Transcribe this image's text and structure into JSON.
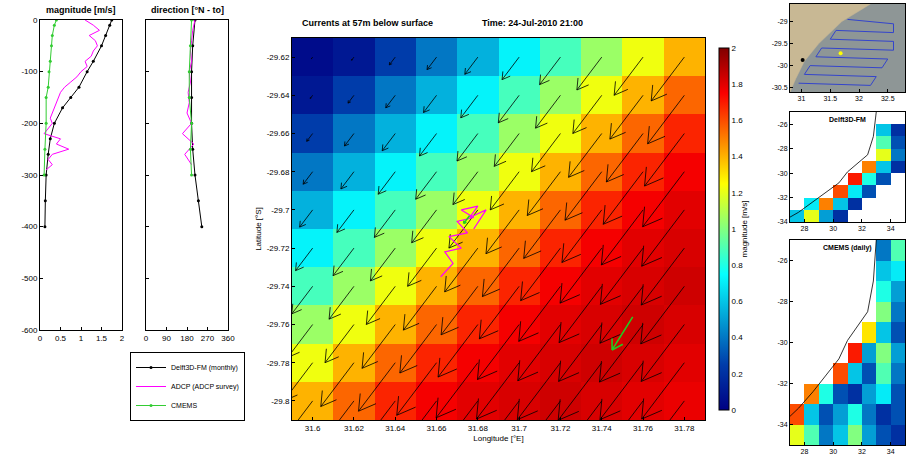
{
  "chart_data": [
    {
      "type": "line",
      "title": "magnitude [m/s]",
      "xlim": [
        0,
        2
      ],
      "xticks": [
        0,
        0.5,
        1,
        1.5,
        2
      ],
      "ylim": [
        -600,
        0
      ],
      "yticks": [
        -600,
        -500,
        -400,
        -300,
        -200,
        -100,
        0
      ],
      "grid": false,
      "series": [
        {
          "name": "Delft3D-FM (monthly)",
          "color": "#000000",
          "marker": "circle",
          "x": [
            1.75,
            1.7,
            1.6,
            1.5,
            1.3,
            1.15,
            0.95,
            0.75,
            0.55,
            0.35,
            0.25,
            0.2,
            0.15,
            0.13,
            0.12
          ],
          "y": [
            0,
            -10,
            -30,
            -50,
            -80,
            -100,
            -130,
            -150,
            -170,
            -200,
            -230,
            -260,
            -300,
            -350,
            -400
          ]
        },
        {
          "name": "ADCP (ADCP survey)",
          "color": "#ff00ff",
          "marker": "none",
          "x": [
            1.1,
            1.3,
            1.45,
            1.2,
            1.35,
            1.4,
            1.3,
            1.25,
            1.1,
            1.15,
            1.0,
            0.9,
            0.75,
            0.6,
            0.5,
            0.45,
            0.4,
            0.35,
            0.3,
            0.25,
            0.3,
            0.2,
            0.1,
            0.5,
            0.4,
            0.7,
            0.3,
            0.2,
            0.3,
            0.15
          ],
          "y": [
            0,
            -10,
            -20,
            -30,
            -40,
            -50,
            -60,
            -70,
            -80,
            -90,
            -100,
            -110,
            -120,
            -130,
            -140,
            -150,
            -160,
            -170,
            -180,
            -190,
            -200,
            -210,
            -220,
            -230,
            -240,
            -250,
            -260,
            -270,
            -280,
            -290
          ]
        },
        {
          "name": "CMEMS",
          "color": "#33cc33",
          "marker": "circle",
          "x": [
            0.4,
            0.35,
            0.3,
            0.28,
            0.25,
            0.22,
            0.2,
            0.15,
            0.15,
            0.12,
            0.1
          ],
          "y": [
            0,
            -10,
            -30,
            -50,
            -80,
            -100,
            -130,
            -150,
            -200,
            -250,
            -300
          ]
        }
      ]
    },
    {
      "type": "line",
      "title": "direction [°N - to]",
      "xlim": [
        0,
        360
      ],
      "xticks": [
        0,
        90,
        180,
        270,
        360
      ],
      "ylim": [
        -600,
        0
      ],
      "yticks": [
        -600,
        -500,
        -400,
        -300,
        -200,
        -100,
        0
      ],
      "grid": false,
      "tick_labels": "x",
      "legend": "bottom",
      "series": [
        {
          "name": "Delft3D-FM (monthly)",
          "color": "#000000",
          "marker": "circle",
          "x": [
            215,
            205,
            200,
            200,
            200,
            205,
            215,
            230,
            245
          ],
          "y": [
            0,
            -50,
            -100,
            -150,
            -200,
            -250,
            -300,
            -350,
            -400
          ]
        },
        {
          "name": "ADCP (ADCP survey)",
          "color": "#ff00ff",
          "marker": "none",
          "x": [
            215,
            205,
            200,
            195,
            200,
            190,
            195,
            185,
            190,
            180,
            200,
            160,
            210,
            170,
            200
          ],
          "y": [
            0,
            -20,
            -40,
            -60,
            -80,
            -100,
            -120,
            -140,
            -160,
            -180,
            -200,
            -220,
            -240,
            -260,
            -280
          ]
        },
        {
          "name": "CMEMS",
          "color": "#33cc33",
          "marker": "circle",
          "x": [
            200,
            195,
            190,
            190,
            200,
            195,
            200
          ],
          "y": [
            0,
            -50,
            -100,
            -150,
            -200,
            -250,
            -300
          ]
        }
      ]
    },
    {
      "type": "heatmap",
      "title": "Currents at 57m below surface",
      "subtitle": "Time: 24-Jul-2010 21:00",
      "x_label": "Longitude [°E]",
      "y_label": "Latitude [°S]",
      "x": [
        31.6,
        31.62,
        31.64,
        31.66,
        31.68,
        31.7,
        31.72,
        31.74,
        31.76,
        31.78
      ],
      "y": [
        -29.62,
        -29.64,
        -29.66,
        -29.68,
        -29.7,
        -29.72,
        -29.74,
        -29.76,
        -29.78,
        -29.8
      ],
      "z": [
        [
          0.05,
          0.1,
          0.25,
          0.4,
          0.55,
          0.72,
          0.88,
          1.05,
          1.22,
          1.4
        ],
        [
          0.1,
          0.25,
          0.4,
          0.55,
          0.72,
          0.88,
          1.05,
          1.22,
          1.4,
          1.55
        ],
        [
          0.25,
          0.4,
          0.55,
          0.72,
          0.88,
          1.05,
          1.22,
          1.4,
          1.55,
          1.68
        ],
        [
          0.4,
          0.55,
          0.72,
          0.88,
          1.05,
          1.22,
          1.4,
          1.55,
          1.68,
          1.76
        ],
        [
          0.55,
          0.72,
          0.88,
          1.05,
          1.22,
          1.4,
          1.55,
          1.68,
          1.76,
          1.8
        ],
        [
          0.72,
          0.88,
          1.05,
          1.22,
          1.4,
          1.55,
          1.68,
          1.76,
          1.8,
          1.82
        ],
        [
          0.88,
          1.05,
          1.22,
          1.4,
          1.55,
          1.68,
          1.76,
          1.8,
          1.82,
          1.84
        ],
        [
          1.05,
          1.22,
          1.4,
          1.55,
          1.68,
          1.76,
          1.8,
          1.82,
          1.84,
          1.82
        ],
        [
          1.22,
          1.4,
          1.55,
          1.68,
          1.76,
          1.8,
          1.82,
          1.84,
          1.82,
          1.8
        ],
        [
          1.4,
          1.55,
          1.68,
          1.76,
          1.8,
          1.82,
          1.84,
          1.82,
          1.8,
          1.78
        ]
      ],
      "xlim": [
        31.59,
        31.79
      ],
      "xticks": [
        31.6,
        31.62,
        31.64,
        31.66,
        31.68,
        31.7,
        31.72,
        31.74,
        31.76,
        31.78
      ],
      "ylim": [
        -29.81,
        -29.61
      ],
      "yticks": [
        -29.8,
        -29.78,
        -29.76,
        -29.74,
        -29.72,
        -29.7,
        -29.68,
        -29.66,
        -29.64,
        -29.62
      ],
      "zlim": [
        0,
        2
      ],
      "zticks": [
        0,
        0.2,
        0.4,
        0.6,
        0.8,
        1,
        1.2,
        1.4,
        1.6,
        1.8,
        2
      ],
      "z_label": "magnitude [m/s]",
      "grid": false,
      "arrows": {
        "direction": 215,
        "color": "#000000"
      },
      "adcp_track": {
        "color": "#ff00ff",
        "x": [
          31.662,
          31.668,
          31.664,
          31.672,
          31.666,
          31.675,
          31.67,
          31.678,
          31.672,
          31.68,
          31.676,
          31.684,
          31.678
        ],
        "y": [
          -29.735,
          -29.728,
          -29.722,
          -29.72,
          -29.714,
          -29.712,
          -29.706,
          -29.704,
          -29.7,
          -29.698,
          -29.704,
          -29.7,
          -29.71
        ]
      },
      "cmems_arrows": {
        "color": "#22cc22",
        "x": [
          31.676,
          31.755
        ],
        "y": [
          -29.703,
          -29.756
        ],
        "speed": [
          0.25,
          1.0
        ],
        "direction": [
          215,
          210
        ]
      }
    },
    {
      "type": "map",
      "xlim": [
        30.8,
        32.8
      ],
      "xticks": [
        31,
        31.5,
        32,
        32.5
      ],
      "ylim": [
        -30.6,
        -28.6
      ],
      "yticks": [
        -30.5,
        -30,
        -29.5,
        -29
      ],
      "grid": false,
      "land": {
        "color": "#c8b894",
        "x": [
          32.2,
          31.7,
          31.3,
          31.05,
          30.9,
          30.8,
          30.8
        ],
        "y": [
          -28.6,
          -29.0,
          -29.5,
          -29.9,
          -30.3,
          -30.6,
          -28.6
        ]
      },
      "track": {
        "color": "#3344cc",
        "x": [
          31.8,
          32.6,
          32.6,
          31.6,
          31.5,
          32.6,
          32.6,
          31.35,
          31.25,
          32.5,
          32.4,
          31.15,
          31.05,
          32.3,
          32.2,
          30.95
        ],
        "y": [
          -28.95,
          -29.05,
          -29.25,
          -29.2,
          -29.4,
          -29.45,
          -29.65,
          -29.6,
          -29.8,
          -29.85,
          -30.05,
          -30.0,
          -30.2,
          -30.25,
          -30.45,
          -30.4
        ]
      },
      "points": {
        "x": [
          31.68,
          31.02
        ],
        "y": [
          -29.72,
          -29.87
        ],
        "colors": [
          "#ffff00",
          "#000000"
        ]
      }
    },
    {
      "type": "map",
      "title": "Delft3D-FM",
      "x": [
        27.5,
        28.5,
        29.5,
        30.5,
        31.5,
        32.5,
        33.5,
        34.5
      ],
      "y": [
        -33.5,
        -32.5,
        -31.5,
        -30.5,
        -29.5,
        -28.5,
        -27.5,
        -26.5,
        -25.5
      ],
      "z": [
        [
          0.6,
          1.2,
          0.5,
          0.2,
          null,
          null,
          null,
          null
        ],
        [
          null,
          0.7,
          1.5,
          0.6,
          0.2,
          null,
          null,
          null
        ],
        [
          null,
          null,
          null,
          1.6,
          0.7,
          0.3,
          null,
          null
        ],
        [
          null,
          null,
          null,
          null,
          1.7,
          0.8,
          0.3,
          null
        ],
        [
          null,
          null,
          null,
          null,
          null,
          1.5,
          0.6,
          0.2
        ],
        [
          null,
          null,
          null,
          null,
          null,
          null,
          1.2,
          0.4
        ],
        [
          null,
          null,
          null,
          null,
          null,
          null,
          0.9,
          0.3
        ],
        [
          null,
          null,
          null,
          null,
          null,
          null,
          0.6,
          0.2
        ],
        [
          null,
          null,
          null,
          null,
          null,
          null,
          null,
          null
        ]
      ],
      "zlim": [
        0,
        2
      ],
      "xlim": [
        27,
        35
      ],
      "xticks": [
        28,
        30,
        32,
        34
      ],
      "ylim": [
        -34,
        -25
      ],
      "yticks": [
        -34,
        -32,
        -30,
        -28,
        -26
      ],
      "grid": false,
      "coastline": {
        "color": "#000000",
        "x": [
          33.0,
          32.9,
          32.8,
          32.4,
          31.8,
          31.0,
          30.4,
          29.6,
          28.6,
          27.6,
          27.0
        ],
        "y": [
          -25.0,
          -26.0,
          -27.0,
          -28.5,
          -29.1,
          -29.9,
          -30.8,
          -31.5,
          -32.4,
          -33.2,
          -33.6
        ]
      }
    },
    {
      "type": "map",
      "title": "CMEMS (daily)",
      "x": [
        27.5,
        28.5,
        29.5,
        30.5,
        31.5,
        32.5,
        33.5,
        34.5
      ],
      "y": [
        -34.5,
        -33.5,
        -32.5,
        -31.5,
        -30.5,
        -29.5,
        -28.5,
        -27.5,
        -26.5,
        -25.5
      ],
      "z": [
        [
          1.2,
          0.9,
          0.4,
          0.6,
          1.0,
          0.5,
          0.3,
          0.2
        ],
        [
          1.6,
          0.6,
          0.3,
          0.5,
          0.8,
          0.4,
          0.2,
          0.3
        ],
        [
          null,
          1.5,
          0.8,
          0.3,
          0.2,
          0.5,
          0.7,
          0.3
        ],
        [
          null,
          null,
          null,
          1.6,
          0.6,
          0.3,
          0.9,
          0.4
        ],
        [
          null,
          null,
          null,
          null,
          1.7,
          0.5,
          1.0,
          0.5
        ],
        [
          null,
          null,
          null,
          null,
          null,
          1.3,
          0.6,
          0.3
        ],
        [
          null,
          null,
          null,
          null,
          null,
          null,
          1.0,
          0.4
        ],
        [
          null,
          null,
          null,
          null,
          null,
          null,
          0.8,
          0.5
        ],
        [
          null,
          null,
          null,
          null,
          null,
          null,
          0.6,
          0.7
        ],
        [
          null,
          null,
          null,
          null,
          null,
          null,
          0.4,
          0.9
        ]
      ],
      "zlim": [
        0,
        2
      ],
      "xlim": [
        27,
        35
      ],
      "xticks": [
        28,
        30,
        32,
        34
      ],
      "ylim": [
        -35,
        -25
      ],
      "yticks": [
        -34,
        -32,
        -30,
        -28,
        -26
      ],
      "grid": false,
      "coastline": {
        "color": "#000000",
        "x": [
          33.0,
          32.9,
          32.8,
          32.4,
          31.8,
          31.0,
          30.4,
          29.6,
          28.6,
          27.6,
          27.0
        ],
        "y": [
          -25.0,
          -26.0,
          -27.0,
          -28.5,
          -29.1,
          -29.9,
          -30.8,
          -31.5,
          -32.4,
          -33.2,
          -33.6
        ]
      }
    }
  ]
}
